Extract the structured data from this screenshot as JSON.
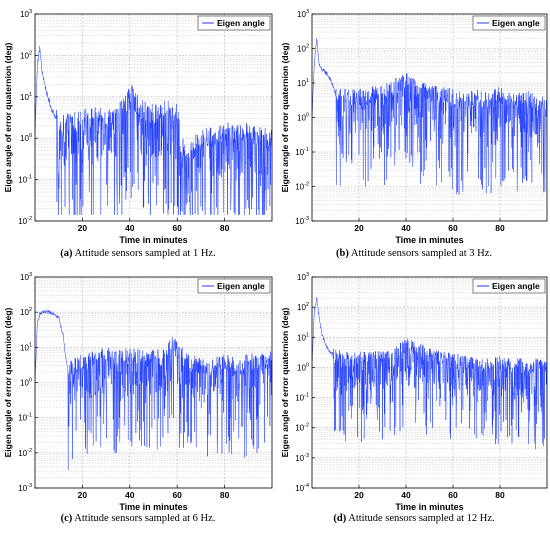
{
  "colors": {
    "series": "#1f3cff",
    "grid": "#b8b8b8",
    "axis": "#000000"
  },
  "panels": [
    {
      "id": "a",
      "caption_tag": "(a)",
      "caption_text": "Attitude sensors sampled at 1 Hz.",
      "chart_data": {
        "type": "line",
        "xlabel": "Time in minutes",
        "ylabel": "Eigen angle of error quaternion (deg)",
        "y_scale": "log",
        "xlim": [
          0,
          100
        ],
        "ylim_exp": [
          -2,
          3
        ],
        "xticks": [
          "20",
          "40",
          "60",
          "80"
        ],
        "yticks": [
          "10^-2",
          "10^-1",
          "10^0",
          "10^1",
          "10^2",
          "10^3"
        ],
        "grid": true,
        "legend": {
          "entries": [
            "Eigen angle"
          ],
          "position": "top-right"
        },
        "series": [
          {
            "name": "Eigen angle",
            "profile": [
              [
                0,
                1.2
              ],
              [
                1,
                60
              ],
              [
                2,
                150
              ],
              [
                3,
                40
              ],
              [
                5,
                12
              ],
              [
                7,
                5
              ],
              [
                9,
                3
              ],
              [
                10,
                2
              ],
              [
                15,
                2.5
              ],
              [
                20,
                3
              ],
              [
                25,
                3.5
              ],
              [
                30,
                3
              ],
              [
                35,
                4
              ],
              [
                40,
                15
              ],
              [
                42,
                8
              ],
              [
                45,
                5
              ],
              [
                50,
                4
              ],
              [
                55,
                5
              ],
              [
                60,
                4
              ],
              [
                62,
                0.6
              ],
              [
                65,
                0.5
              ],
              [
                70,
                1
              ],
              [
                75,
                1.2
              ],
              [
                80,
                1.5
              ],
              [
                85,
                1.3
              ],
              [
                90,
                1.5
              ],
              [
                95,
                1.2
              ],
              [
                100,
                1.2
              ]
            ],
            "dips_start_minute": 9
          }
        ]
      }
    },
    {
      "id": "b",
      "caption_tag": "(b)",
      "caption_text": "Attitude sensors sampled at 3 Hz.",
      "chart_data": {
        "type": "line",
        "xlabel": "Time in minutes",
        "ylabel": "Eigen angle of error quaternion (deg)",
        "y_scale": "log",
        "xlim": [
          0,
          100
        ],
        "ylim_exp": [
          -3,
          3
        ],
        "xticks": [
          "20",
          "40",
          "60",
          "80"
        ],
        "yticks": [
          "10^-3",
          "10^-2",
          "10^-1",
          "10^0",
          "10^1",
          "10^2",
          "10^3"
        ],
        "grid": true,
        "legend": {
          "entries": [
            "Eigen angle"
          ],
          "position": "top-right"
        },
        "series": [
          {
            "name": "Eigen angle",
            "profile": [
              [
                0,
                1
              ],
              [
                1,
                40
              ],
              [
                2,
                180
              ],
              [
                3,
                35
              ],
              [
                4,
                25
              ],
              [
                6,
                20
              ],
              [
                8,
                12
              ],
              [
                10,
                5
              ],
              [
                15,
                4
              ],
              [
                20,
                4
              ],
              [
                25,
                5
              ],
              [
                30,
                5
              ],
              [
                35,
                8
              ],
              [
                40,
                12
              ],
              [
                42,
                15
              ],
              [
                45,
                8
              ],
              [
                50,
                5
              ],
              [
                55,
                5
              ],
              [
                60,
                4
              ],
              [
                65,
                3
              ],
              [
                70,
                4
              ],
              [
                75,
                3
              ],
              [
                80,
                5
              ],
              [
                85,
                3
              ],
              [
                90,
                4
              ],
              [
                95,
                3
              ],
              [
                100,
                3
              ]
            ],
            "dips_start_minute": 10
          }
        ]
      }
    },
    {
      "id": "c",
      "caption_tag": "(c)",
      "caption_text": "Attitude sensors sampled at 6 Hz.",
      "chart_data": {
        "type": "line",
        "xlabel": "Time in minutes",
        "ylabel": "Eigen angle of error quaternion (deg)",
        "y_scale": "log",
        "xlim": [
          0,
          100
        ],
        "ylim_exp": [
          -3,
          3
        ],
        "xticks": [
          "20",
          "40",
          "60",
          "80"
        ],
        "yticks": [
          "10^-3",
          "10^-2",
          "10^-1",
          "10^0",
          "10^1",
          "10^2",
          "10^3"
        ],
        "grid": true,
        "legend": {
          "entries": [
            "Eigen angle"
          ],
          "position": "top-right"
        },
        "series": [
          {
            "name": "Eigen angle",
            "profile": [
              [
                0,
                1
              ],
              [
                1,
                50
              ],
              [
                2,
                90
              ],
              [
                4,
                100
              ],
              [
                6,
                100
              ],
              [
                8,
                95
              ],
              [
                10,
                70
              ],
              [
                12,
                20
              ],
              [
                13,
                5
              ],
              [
                14,
                2
              ],
              [
                15,
                3
              ],
              [
                20,
                4
              ],
              [
                25,
                5
              ],
              [
                30,
                6
              ],
              [
                35,
                5
              ],
              [
                40,
                6
              ],
              [
                45,
                5
              ],
              [
                50,
                5
              ],
              [
                55,
                6
              ],
              [
                58,
                15
              ],
              [
                60,
                8
              ],
              [
                65,
                4
              ],
              [
                70,
                3
              ],
              [
                75,
                3
              ],
              [
                80,
                4
              ],
              [
                85,
                3
              ],
              [
                90,
                4
              ],
              [
                95,
                4
              ],
              [
                100,
                5
              ]
            ],
            "dips_start_minute": 14
          }
        ]
      }
    },
    {
      "id": "d",
      "caption_tag": "(d)",
      "caption_text": "Attitude sensors sampled at 12 Hz.",
      "chart_data": {
        "type": "line",
        "xlabel": "Time in minutes",
        "ylabel": "Eigen angle of error quaternion (deg)",
        "y_scale": "log",
        "xlim": [
          0,
          100
        ],
        "ylim_exp": [
          -4,
          3
        ],
        "xticks": [
          "20",
          "40",
          "60",
          "80"
        ],
        "yticks": [
          "10^-4",
          "10^-3",
          "10^-2",
          "10^-1",
          "10^0",
          "10^1",
          "10^2",
          "10^3"
        ],
        "grid": true,
        "legend": {
          "entries": [
            "Eigen angle"
          ],
          "position": "top-right"
        },
        "series": [
          {
            "name": "Eigen angle",
            "profile": [
              [
                0,
                1
              ],
              [
                1,
                80
              ],
              [
                2,
                200
              ],
              [
                3,
                50
              ],
              [
                4,
                15
              ],
              [
                6,
                5
              ],
              [
                8,
                3
              ],
              [
                10,
                2.5
              ],
              [
                15,
                2
              ],
              [
                20,
                2
              ],
              [
                25,
                2
              ],
              [
                30,
                2.5
              ],
              [
                35,
                3
              ],
              [
                40,
                6
              ],
              [
                45,
                4
              ],
              [
                50,
                3
              ],
              [
                55,
                2
              ],
              [
                60,
                2
              ],
              [
                65,
                1.5
              ],
              [
                70,
                1.2
              ],
              [
                75,
                1.2
              ],
              [
                80,
                1.5
              ],
              [
                85,
                1.2
              ],
              [
                90,
                1.2
              ],
              [
                95,
                1.2
              ],
              [
                100,
                1.2
              ]
            ],
            "dips_start_minute": 9
          }
        ]
      }
    }
  ]
}
